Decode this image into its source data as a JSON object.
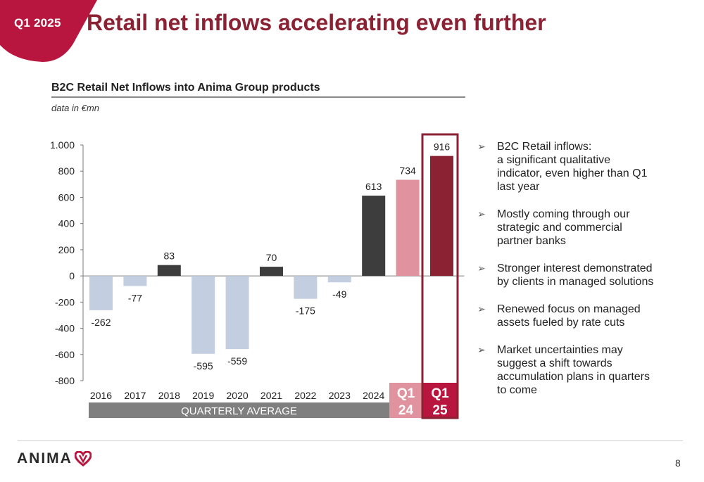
{
  "header": {
    "badge": "Q1 2025",
    "title": "Retail net inflows accelerating even further"
  },
  "colors": {
    "brand": "#8b2233",
    "accent": "#b8163e",
    "negative_bar": "#c3cee0",
    "annual_bar": "#3d3d3d",
    "q1_24_bar": "#e0939e",
    "q1_25_bar": "#8b2233",
    "quarterly_band": "#7f7f7f"
  },
  "chart_data": {
    "type": "bar",
    "title": "B2C Retail Net Inflows into Anima Group products",
    "subtitle": "data in €mn",
    "categories": [
      "2016",
      "2017",
      "2018",
      "2019",
      "2020",
      "2021",
      "2022",
      "2023",
      "2024",
      "Q1 24",
      "Q1 25"
    ],
    "category_labels": [
      [
        "2016"
      ],
      [
        "2017"
      ],
      [
        "2018"
      ],
      [
        "2019"
      ],
      [
        "2020"
      ],
      [
        "2021"
      ],
      [
        "2022"
      ],
      [
        "2023"
      ],
      [
        "2024"
      ],
      [
        "Q1",
        "24"
      ],
      [
        "Q1",
        "25"
      ]
    ],
    "values": [
      -262,
      -77,
      83,
      -595,
      -559,
      70,
      -175,
      -49,
      613,
      734,
      916
    ],
    "data_labels": [
      "-262",
      "-77",
      "83",
      "-595",
      "-559",
      "70",
      "-175",
      "-49",
      "613",
      "734",
      "916"
    ],
    "ylim": [
      -800,
      1000
    ],
    "yticks": [
      1000,
      800,
      600,
      400,
      200,
      0,
      -200,
      -400,
      -600,
      -800
    ],
    "ytick_labels": [
      "1.000",
      "800",
      "600",
      "400",
      "200",
      "0",
      "-200",
      "-400",
      "-600",
      "-800"
    ],
    "xlabel": "",
    "ylabel": "",
    "grid": false,
    "band_label": "QUARTERLY AVERAGE",
    "band_categories": [
      "2016",
      "2024"
    ],
    "highlighted_category": "Q1 25"
  },
  "bullets": [
    [
      "B2C Retail inflows:",
      "a significant qualitative",
      "indicator, even higher than Q1",
      "last year"
    ],
    [
      "Mostly coming through our",
      "strategic and commercial",
      "partner banks"
    ],
    [
      "Stronger interest demonstrated",
      "by clients in managed solutions"
    ],
    [
      "Renewed focus on managed",
      "assets fueled by rate cuts"
    ],
    [
      "Market uncertainties may",
      "suggest a shift towards",
      "accumulation plans in quarters",
      "to come"
    ]
  ],
  "bullet_icon": "arrow-right-icon",
  "footer": {
    "logo_text": "ANIMA",
    "logo_icon": "heart-logo-icon",
    "page_number": "8"
  }
}
